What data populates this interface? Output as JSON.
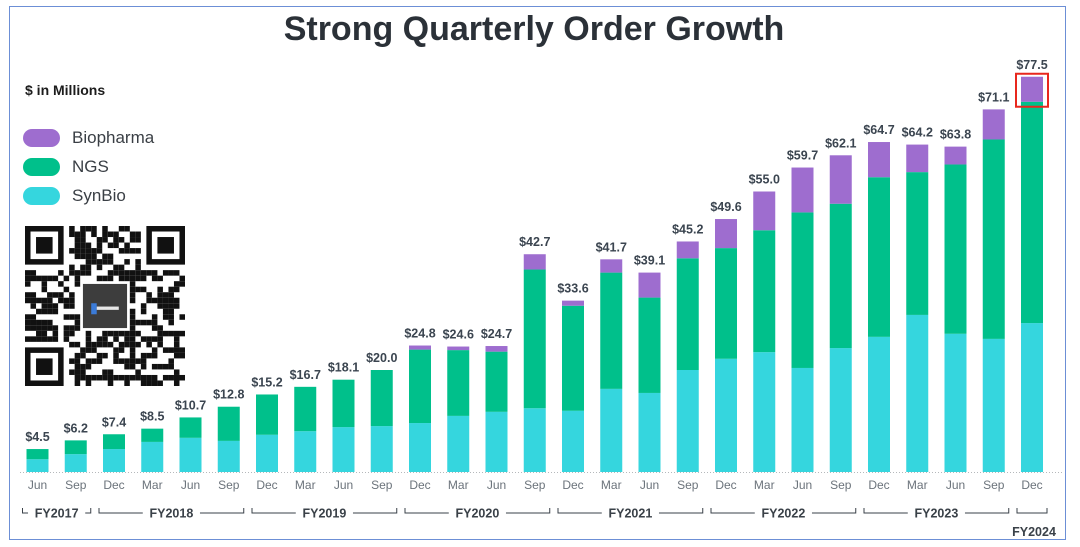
{
  "chart_data": {
    "type": "bar",
    "stacked": true,
    "title": "Strong Quarterly Order Growth",
    "ylabel": "$ in Millions",
    "xlabel": "",
    "ylim": [
      0,
      80
    ],
    "grid": false,
    "legend_position": "top-left",
    "categories": [
      "Jun",
      "Sep",
      "Dec",
      "Mar",
      "Jun",
      "Sep",
      "Dec",
      "Mar",
      "Jun",
      "Sep",
      "Dec",
      "Mar",
      "Jun",
      "Sep",
      "Dec",
      "Mar",
      "Jun",
      "Sep",
      "Dec",
      "Mar",
      "Jun",
      "Sep",
      "Dec",
      "Mar",
      "Jun",
      "Sep",
      "Dec"
    ],
    "fiscal_years": [
      {
        "label": "FY2017",
        "start": 0,
        "end": 1
      },
      {
        "label": "FY2018",
        "start": 2,
        "end": 5
      },
      {
        "label": "FY2019",
        "start": 6,
        "end": 9
      },
      {
        "label": "FY2020",
        "start": 10,
        "end": 13
      },
      {
        "label": "FY2021",
        "start": 14,
        "end": 17
      },
      {
        "label": "FY2022",
        "start": 18,
        "end": 21
      },
      {
        "label": "FY2023",
        "start": 22,
        "end": 25
      },
      {
        "label": "FY2024",
        "start": 26,
        "end": 26
      }
    ],
    "totals": [
      4.5,
      6.2,
      7.4,
      8.5,
      10.7,
      12.8,
      15.2,
      16.7,
      18.1,
      20.0,
      24.8,
      24.6,
      24.7,
      42.7,
      33.6,
      41.7,
      39.1,
      45.2,
      49.6,
      55.0,
      59.7,
      62.1,
      64.7,
      64.2,
      63.8,
      71.1,
      77.5
    ],
    "total_labels": [
      "$4.5",
      "$6.2",
      "$7.4",
      "$8.5",
      "$10.7",
      "$12.8",
      "$15.2",
      "$16.7",
      "$18.1",
      "$20.0",
      "$24.8",
      "$24.6",
      "$24.7",
      "$42.7",
      "$33.6",
      "$41.7",
      "$39.1",
      "$45.2",
      "$49.6",
      "$55.0",
      "$59.7",
      "$62.1",
      "$64.7",
      "$64.2",
      "$63.8",
      "$71.1",
      "$77.5"
    ],
    "series": [
      {
        "name": "SynBio",
        "color": "#35d6de",
        "values": [
          2.5,
          3.5,
          4.5,
          5.9,
          6.7,
          6.1,
          7.3,
          8.0,
          8.8,
          9.0,
          9.6,
          11.0,
          11.8,
          12.5,
          12.0,
          16.3,
          15.5,
          20.0,
          22.2,
          23.5,
          20.4,
          24.3,
          26.5,
          30.8,
          27.1,
          26.1,
          29.2
        ]
      },
      {
        "name": "NGS",
        "color": "#00c08b",
        "values": [
          2.0,
          2.7,
          2.9,
          2.6,
          4.0,
          6.7,
          7.9,
          8.7,
          9.3,
          11.0,
          14.4,
          12.9,
          11.8,
          27.2,
          20.6,
          22.8,
          18.7,
          21.9,
          21.7,
          23.9,
          30.5,
          28.3,
          31.3,
          28.0,
          33.2,
          39.1,
          43.4
        ]
      },
      {
        "name": "Biopharma",
        "color": "#9e6dcf",
        "values": [
          0,
          0,
          0,
          0,
          0,
          0,
          0,
          0,
          0,
          0,
          0.8,
          0.7,
          1.1,
          3.0,
          1.0,
          2.6,
          4.9,
          3.3,
          5.7,
          7.6,
          8.8,
          9.5,
          6.9,
          5.4,
          3.5,
          5.9,
          4.9
        ]
      }
    ],
    "annotations": [
      {
        "type": "highlight-box",
        "target_category_index": 26,
        "target_series": "Biopharma",
        "color": "#e8271d"
      }
    ]
  },
  "legend": [
    {
      "label": "Biopharma",
      "color": "#9e6dcf"
    },
    {
      "label": "NGS",
      "color": "#00c08b"
    },
    {
      "label": "SynBio",
      "color": "#35d6de"
    }
  ],
  "qr_code": {
    "icon": "qr-code-icon"
  }
}
